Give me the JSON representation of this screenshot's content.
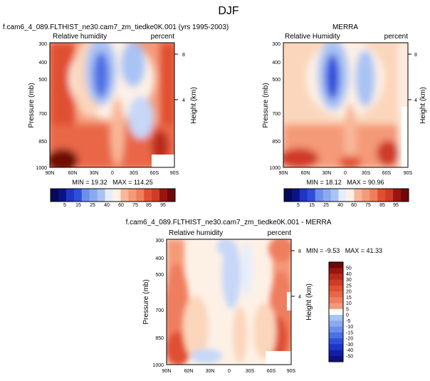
{
  "page_title": "DJF",
  "colors": {
    "positive_levels": [
      "#fdf1e6",
      "#fbd6bc",
      "#f8b797",
      "#f49a78",
      "#ef7e5e",
      "#e96646",
      "#e04f32",
      "#cf3b25",
      "#b82a1a",
      "#98160f",
      "#6f0806"
    ],
    "negative_levels": [
      "#e6eefb",
      "#c6d7f8",
      "#a8c3f4",
      "#8aaaf0",
      "#6d8feb",
      "#4d6fe5",
      "#2f4fdb",
      "#1f35c5",
      "#141fa6",
      "#0b1282",
      "#040a5a"
    ]
  },
  "chart_data": [
    {
      "id": "model",
      "type": "heatmap",
      "title": "f.cam6_4_089.FLTHIST_ne30.cam7_zm_tiedke0K.001 (yrs 1995-2003)",
      "left_label": "Relative humidity",
      "right_label": "percent",
      "ylabel": "Pressure (mb)",
      "ylabel_right": "Height (km)",
      "x_ticks": [
        "90N",
        "60N",
        "30N",
        "0",
        "30S",
        "60S",
        "90S"
      ],
      "y_ticks": [
        "300",
        "400",
        "500",
        "700",
        "850",
        "1000"
      ],
      "right_ticks": [
        "8",
        "4"
      ],
      "stats": "MIN = 19.32   MAX = 114.25",
      "colorbar_labels": [
        "5",
        "15",
        "25",
        "40",
        "60",
        "75",
        "85",
        "95"
      ]
    },
    {
      "id": "obs",
      "type": "heatmap",
      "title": "MERRA",
      "left_label": "Relative Humidity",
      "right_label": "percent",
      "ylabel": "Pressure (mb)",
      "ylabel_right": "Height (km)",
      "x_ticks": [
        "90N",
        "60N",
        "30N",
        "0",
        "30S",
        "60S",
        "90S"
      ],
      "y_ticks": [
        "300",
        "400",
        "500",
        "700",
        "850",
        "1000"
      ],
      "right_ticks": [
        "8",
        "4"
      ],
      "stats": "MIN = 18.12   MAX = 90.96",
      "colorbar_labels": [
        "5",
        "15",
        "25",
        "40",
        "60",
        "75",
        "85",
        "95"
      ]
    },
    {
      "id": "diff",
      "type": "heatmap",
      "title": "f.cam6_4_089.FLTHIST_ne30.cam7_zm_tiedke0K.001 - MERRA",
      "left_label": "Relative humidity",
      "right_label": "percent",
      "ylabel": "Pressure (mb)",
      "ylabel_right": "Height (km)",
      "x_ticks": [
        "90N",
        "60N",
        "30N",
        "0",
        "30S",
        "60S",
        "90S"
      ],
      "y_ticks": [
        "300",
        "400",
        "500",
        "700",
        "850",
        "1000"
      ],
      "right_ticks": [
        "8",
        "4"
      ],
      "stats": "MIN = -9.53   MAX = 41.33",
      "colorbar_labels": [
        "50",
        "40",
        "30",
        "25",
        "20",
        "15",
        "10",
        "5",
        "0",
        "-5",
        "-10",
        "-15",
        "-20",
        "-30",
        "-40",
        "-50"
      ]
    }
  ]
}
